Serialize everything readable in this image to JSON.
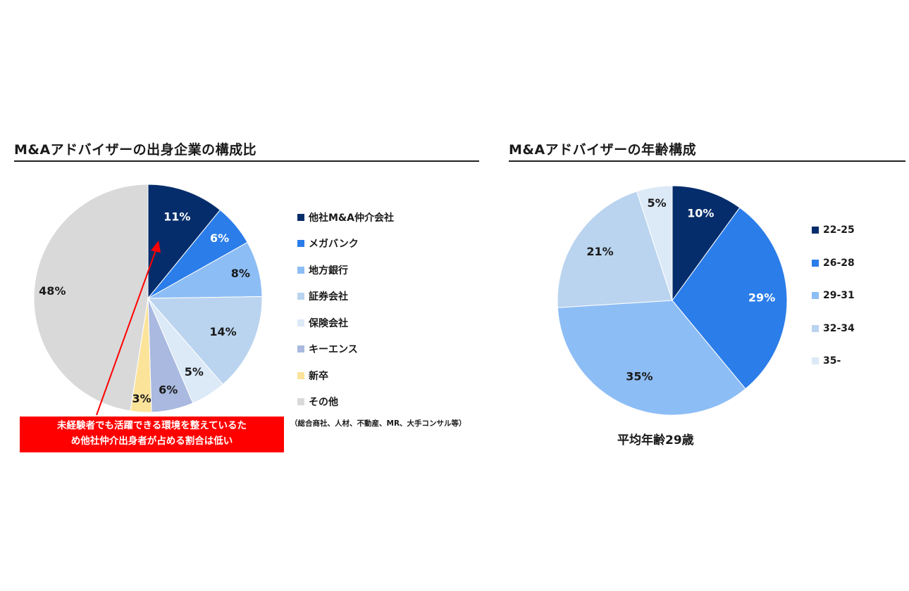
{
  "chart_data": [
    {
      "type": "pie",
      "title": "M&Aアドバイザーの出身企業の構成比",
      "categories": [
        "他社M&A仲介会社",
        "メガバンク",
        "地方銀行",
        "証券会社",
        "保険会社",
        "キーエンス",
        "新卒",
        "その他"
      ],
      "values": [
        11,
        6,
        8,
        14,
        5,
        6,
        3,
        48
      ],
      "labels": [
        "11%",
        "6%",
        "8%",
        "14%",
        "5%",
        "6%",
        "3%",
        "48%"
      ],
      "colors": [
        "#062d6b",
        "#2b7de9",
        "#8dbdf5",
        "#bad4ef",
        "#dce9f7",
        "#a9b9df",
        "#fbe39a",
        "#d9d9d9"
      ],
      "label_colors": [
        "#ffffff",
        "#ffffff",
        "#1a1a1a",
        "#1a1a1a",
        "#1a1a1a",
        "#1a1a1a",
        "#1a1a1a",
        "#1a1a1a"
      ],
      "legend_position": "right",
      "note": "（総合商社、人材、不動産、MR、大手コンサル等）",
      "annotation": {
        "lines": [
          "未経験者でも活躍できる環境を整えているた",
          "め他社仲介出身者が占める割合は低い"
        ],
        "color": "#ff0000"
      }
    },
    {
      "type": "pie",
      "title": "M&Aアドバイザーの年齢構成",
      "categories": [
        "22-25",
        "26-28",
        "29-31",
        "32-34",
        "35-"
      ],
      "values": [
        10,
        29,
        35,
        21,
        5
      ],
      "labels": [
        "10%",
        "29%",
        "35%",
        "21%",
        "5%"
      ],
      "colors": [
        "#062d6b",
        "#2b7de9",
        "#8dbdf5",
        "#bad4ef",
        "#dce9f7"
      ],
      "label_colors": [
        "#ffffff",
        "#ffffff",
        "#1a1a1a",
        "#1a1a1a",
        "#1a1a1a"
      ],
      "legend_position": "right",
      "caption": "平均年齢29歳"
    }
  ]
}
